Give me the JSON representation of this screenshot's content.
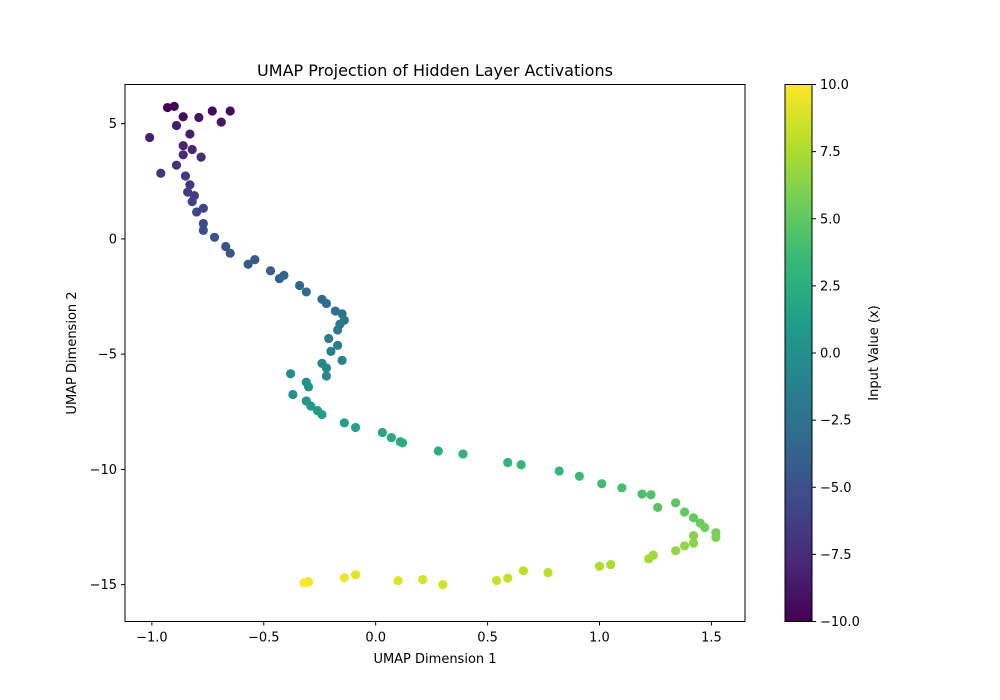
{
  "chart_data": {
    "type": "scatter",
    "title": "UMAP Projection of Hidden Layer Activations",
    "xlabel": "UMAP Dimension 1",
    "ylabel": "UMAP Dimension 2",
    "xlim": [
      -1.12,
      1.65
    ],
    "ylim": [
      -16.6,
      6.7
    ],
    "xticks": [
      -1.0,
      -0.5,
      0.0,
      0.5,
      1.0,
      1.5
    ],
    "xtick_labels": [
      "−1.0",
      "−0.5",
      "0.0",
      "0.5",
      "1.0",
      "1.5"
    ],
    "yticks": [
      5,
      0,
      -5,
      -10,
      -15
    ],
    "ytick_labels": [
      "5",
      "0",
      "−5",
      "−10",
      "−15"
    ],
    "grid": false,
    "colormap": {
      "name": "viridis",
      "stops": [
        "#440154",
        "#482878",
        "#3e4989",
        "#31688e",
        "#26828e",
        "#1f9e89",
        "#35b779",
        "#6ece58",
        "#b5de2b",
        "#fde725"
      ]
    },
    "colorbar": {
      "label": "Input Value (x)",
      "range": [
        -10.0,
        10.0
      ],
      "ticks": [
        10.0,
        7.5,
        5.0,
        2.5,
        0.0,
        -2.5,
        -5.0,
        -7.5,
        -10.0
      ],
      "tick_labels": [
        "10.0",
        "7.5",
        "5.0",
        "2.5",
        "0.0",
        "−2.5",
        "−5.0",
        "−7.5",
        "−10.0"
      ]
    },
    "points": [
      {
        "x": -0.93,
        "y": 5.7,
        "c": -10.0
      },
      {
        "x": -0.9,
        "y": 5.75,
        "c": -9.8
      },
      {
        "x": -0.73,
        "y": 5.55,
        "c": -9.6
      },
      {
        "x": -0.65,
        "y": 5.55,
        "c": -9.4
      },
      {
        "x": -0.86,
        "y": 5.3,
        "c": -9.2
      },
      {
        "x": -0.79,
        "y": 5.27,
        "c": -9.0
      },
      {
        "x": -0.69,
        "y": 5.07,
        "c": -8.8
      },
      {
        "x": -0.89,
        "y": 4.92,
        "c": -8.6
      },
      {
        "x": -0.83,
        "y": 4.55,
        "c": -8.4
      },
      {
        "x": -1.01,
        "y": 4.4,
        "c": -8.2
      },
      {
        "x": -0.86,
        "y": 4.05,
        "c": -8.0
      },
      {
        "x": -0.82,
        "y": 3.88,
        "c": -7.8
      },
      {
        "x": -0.86,
        "y": 3.65,
        "c": -7.6
      },
      {
        "x": -0.78,
        "y": 3.55,
        "c": -7.4
      },
      {
        "x": -0.89,
        "y": 3.2,
        "c": -7.2
      },
      {
        "x": -0.96,
        "y": 2.85,
        "c": -7.0
      },
      {
        "x": -0.85,
        "y": 2.73,
        "c": -6.8
      },
      {
        "x": -0.83,
        "y": 2.35,
        "c": -6.6
      },
      {
        "x": -0.84,
        "y": 2.03,
        "c": -6.4
      },
      {
        "x": -0.81,
        "y": 1.88,
        "c": -6.2
      },
      {
        "x": -0.82,
        "y": 1.62,
        "c": -6.0
      },
      {
        "x": -0.77,
        "y": 1.33,
        "c": -5.8
      },
      {
        "x": -0.8,
        "y": 1.17,
        "c": -5.6
      },
      {
        "x": -0.77,
        "y": 0.67,
        "c": -5.4
      },
      {
        "x": -0.77,
        "y": 0.37,
        "c": -5.2
      },
      {
        "x": -0.72,
        "y": 0.07,
        "c": -5.0
      },
      {
        "x": -0.67,
        "y": -0.33,
        "c": -4.8
      },
      {
        "x": -0.65,
        "y": -0.62,
        "c": -4.6
      },
      {
        "x": -0.57,
        "y": -1.1,
        "c": -4.4
      },
      {
        "x": -0.54,
        "y": -0.9,
        "c": -4.2
      },
      {
        "x": -0.47,
        "y": -1.38,
        "c": -4.0
      },
      {
        "x": -0.43,
        "y": -1.72,
        "c": -3.8
      },
      {
        "x": -0.41,
        "y": -1.58,
        "c": -3.6
      },
      {
        "x": -0.34,
        "y": -2.02,
        "c": -3.4
      },
      {
        "x": -0.31,
        "y": -2.3,
        "c": -3.2
      },
      {
        "x": -0.24,
        "y": -2.62,
        "c": -3.0
      },
      {
        "x": -0.22,
        "y": -2.8,
        "c": -2.8
      },
      {
        "x": -0.18,
        "y": -3.13,
        "c": -2.6
      },
      {
        "x": -0.15,
        "y": -3.25,
        "c": -2.4
      },
      {
        "x": -0.14,
        "y": -3.53,
        "c": -2.2
      },
      {
        "x": -0.16,
        "y": -3.7,
        "c": -2.0
      },
      {
        "x": -0.17,
        "y": -3.95,
        "c": -1.8
      },
      {
        "x": -0.21,
        "y": -4.32,
        "c": -1.6
      },
      {
        "x": -0.17,
        "y": -4.62,
        "c": -1.4
      },
      {
        "x": -0.2,
        "y": -4.88,
        "c": -1.2
      },
      {
        "x": -0.15,
        "y": -5.27,
        "c": -1.0
      },
      {
        "x": -0.24,
        "y": -5.4,
        "c": -0.8
      },
      {
        "x": -0.22,
        "y": -5.6,
        "c": -0.6
      },
      {
        "x": -0.22,
        "y": -5.95,
        "c": -0.4
      },
      {
        "x": -0.38,
        "y": -5.85,
        "c": -0.2
      },
      {
        "x": -0.31,
        "y": -6.22,
        "c": 0.0
      },
      {
        "x": -0.3,
        "y": -6.42,
        "c": 0.2
      },
      {
        "x": -0.37,
        "y": -6.75,
        "c": 0.4
      },
      {
        "x": -0.31,
        "y": -7.03,
        "c": 0.6
      },
      {
        "x": -0.29,
        "y": -7.25,
        "c": 0.8
      },
      {
        "x": -0.26,
        "y": -7.45,
        "c": 1.0
      },
      {
        "x": -0.24,
        "y": -7.62,
        "c": 1.2
      },
      {
        "x": -0.14,
        "y": -7.98,
        "c": 1.4
      },
      {
        "x": -0.09,
        "y": -8.18,
        "c": 1.6
      },
      {
        "x": 0.03,
        "y": -8.4,
        "c": 1.8
      },
      {
        "x": 0.07,
        "y": -8.62,
        "c": 2.0
      },
      {
        "x": 0.11,
        "y": -8.8,
        "c": 2.2
      },
      {
        "x": 0.12,
        "y": -8.85,
        "c": 2.4
      },
      {
        "x": 0.28,
        "y": -9.2,
        "c": 2.6
      },
      {
        "x": 0.39,
        "y": -9.33,
        "c": 2.8
      },
      {
        "x": 0.59,
        "y": -9.7,
        "c": 3.0
      },
      {
        "x": 0.65,
        "y": -9.8,
        "c": 3.2
      },
      {
        "x": 0.82,
        "y": -10.07,
        "c": 3.4
      },
      {
        "x": 0.91,
        "y": -10.3,
        "c": 3.6
      },
      {
        "x": 1.01,
        "y": -10.62,
        "c": 3.8
      },
      {
        "x": 1.1,
        "y": -10.8,
        "c": 4.0
      },
      {
        "x": 1.19,
        "y": -11.07,
        "c": 4.2
      },
      {
        "x": 1.23,
        "y": -11.1,
        "c": 4.4
      },
      {
        "x": 1.26,
        "y": -11.65,
        "c": 4.6
      },
      {
        "x": 1.34,
        "y": -11.45,
        "c": 4.8
      },
      {
        "x": 1.38,
        "y": -11.85,
        "c": 5.0
      },
      {
        "x": 1.42,
        "y": -12.1,
        "c": 5.2
      },
      {
        "x": 1.45,
        "y": -12.33,
        "c": 5.4
      },
      {
        "x": 1.47,
        "y": -12.52,
        "c": 5.6
      },
      {
        "x": 1.52,
        "y": -12.75,
        "c": 5.8
      },
      {
        "x": 1.52,
        "y": -12.95,
        "c": 6.0
      },
      {
        "x": 1.42,
        "y": -12.88,
        "c": 6.2
      },
      {
        "x": 1.42,
        "y": -13.2,
        "c": 6.4
      },
      {
        "x": 1.38,
        "y": -13.32,
        "c": 6.6
      },
      {
        "x": 1.34,
        "y": -13.53,
        "c": 6.8
      },
      {
        "x": 1.24,
        "y": -13.72,
        "c": 7.0
      },
      {
        "x": 1.22,
        "y": -13.88,
        "c": 7.2
      },
      {
        "x": 1.05,
        "y": -14.13,
        "c": 7.4
      },
      {
        "x": 1.0,
        "y": -14.2,
        "c": 7.6
      },
      {
        "x": 0.77,
        "y": -14.48,
        "c": 7.8
      },
      {
        "x": 0.66,
        "y": -14.4,
        "c": 8.0
      },
      {
        "x": 0.59,
        "y": -14.72,
        "c": 8.2
      },
      {
        "x": 0.54,
        "y": -14.82,
        "c": 8.4
      },
      {
        "x": 0.3,
        "y": -15.0,
        "c": 8.6
      },
      {
        "x": 0.21,
        "y": -14.78,
        "c": 8.8
      },
      {
        "x": 0.1,
        "y": -14.83,
        "c": 9.0
      },
      {
        "x": -0.09,
        "y": -14.57,
        "c": 9.2
      },
      {
        "x": -0.14,
        "y": -14.7,
        "c": 9.4
      },
      {
        "x": -0.3,
        "y": -14.88,
        "c": 9.6
      },
      {
        "x": -0.31,
        "y": -14.9,
        "c": 9.8
      },
      {
        "x": -0.32,
        "y": -14.92,
        "c": 10.0
      }
    ]
  }
}
